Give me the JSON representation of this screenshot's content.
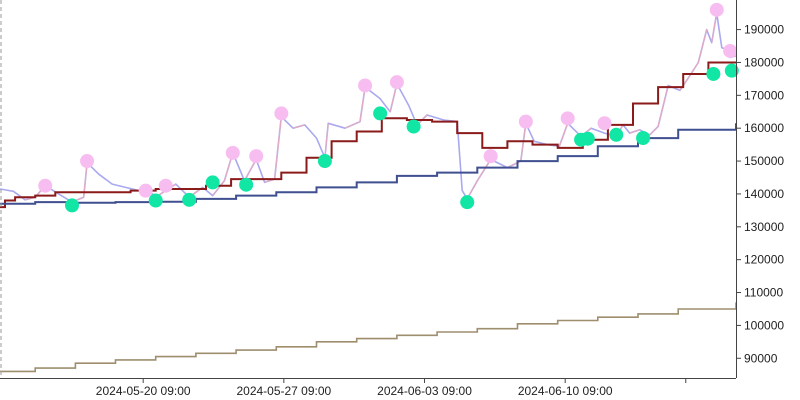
{
  "chart_data": {
    "type": "line",
    "title": "",
    "xlabel": "",
    "ylabel": "",
    "x_range": [
      "2024-05-13T06:00",
      "2024-06-18T21:00"
    ],
    "ylim": [
      84000,
      199000
    ],
    "y_ticks": [
      90000,
      100000,
      110000,
      120000,
      130000,
      140000,
      150000,
      160000,
      170000,
      180000,
      190000
    ],
    "x_ticks": [
      {
        "x": "2024-05-20T09:00",
        "label": "2024-05-20 09:00"
      },
      {
        "x": "2024-05-27T09:00",
        "label": "2024-05-27 09:00"
      },
      {
        "x": "2024-06-03T09:00",
        "label": "2024-06-03 09:00"
      },
      {
        "x": "2024-06-10T09:00",
        "label": "2024-06-10 09:00"
      },
      {
        "x": "2024-06-16T09:00",
        "label": ""
      }
    ],
    "axis_position": "right",
    "grid": false,
    "colors": {
      "price": "#a9a9f0",
      "price_up": "#f3a9b8",
      "short_ma": "#8b1a1a",
      "long_ma": "#3f4f8f",
      "trend": "#9e8e6e",
      "peak_marker": "#f7bdf0",
      "trough_marker": "#11e6a4",
      "axis": "#444444",
      "start_line": "#999999"
    },
    "series": [
      {
        "style": "price",
        "points": [
          [
            "2024-05-13T06:00",
            141500
          ],
          [
            "2024-05-13T22:00",
            140800
          ],
          [
            "2024-05-14T12:00",
            138200
          ],
          [
            "2024-05-15T00:00",
            139000
          ],
          [
            "2024-05-15T12:00",
            142500
          ],
          [
            "2024-05-16T04:00",
            140000
          ],
          [
            "2024-05-16T20:00",
            137500
          ],
          [
            "2024-05-17T10:00",
            139000
          ],
          [
            "2024-05-17T14:00",
            149500
          ],
          [
            "2024-05-18T04:00",
            146000
          ],
          [
            "2024-05-18T20:00",
            143000
          ],
          [
            "2024-05-19T12:00",
            142000
          ],
          [
            "2024-05-20T04:00",
            141000
          ],
          [
            "2024-05-20T12:00",
            142000
          ],
          [
            "2024-05-21T00:00",
            139000
          ],
          [
            "2024-05-21T12:00",
            141000
          ],
          [
            "2024-05-22T00:00",
            143000
          ],
          [
            "2024-05-22T16:00",
            139000
          ],
          [
            "2024-05-23T08:00",
            142000
          ],
          [
            "2024-05-23T20:00",
            139500
          ],
          [
            "2024-05-24T10:00",
            144000
          ],
          [
            "2024-05-24T20:00",
            152500
          ],
          [
            "2024-05-25T10:00",
            144000
          ],
          [
            "2024-05-26T00:00",
            150500
          ],
          [
            "2024-05-26T10:00",
            143500
          ],
          [
            "2024-05-26T22:00",
            144500
          ],
          [
            "2024-05-27T06:00",
            163500
          ],
          [
            "2024-05-27T20:00",
            160000
          ],
          [
            "2024-05-28T10:00",
            161000
          ],
          [
            "2024-05-29T00:00",
            157000
          ],
          [
            "2024-05-29T10:00",
            151000
          ],
          [
            "2024-05-29T14:00",
            161500
          ],
          [
            "2024-05-30T10:00",
            160000
          ],
          [
            "2024-05-31T04:00",
            162000
          ],
          [
            "2024-05-31T10:00",
            172500
          ],
          [
            "2024-06-01T04:00",
            169000
          ],
          [
            "2024-06-01T16:00",
            165000
          ],
          [
            "2024-06-02T00:00",
            173500
          ],
          [
            "2024-06-02T14:00",
            167000
          ],
          [
            "2024-06-03T00:00",
            161000
          ],
          [
            "2024-06-03T12:00",
            164000
          ],
          [
            "2024-06-04T08:00",
            162500
          ],
          [
            "2024-06-05T00:00",
            162000
          ],
          [
            "2024-06-05T06:00",
            141000
          ],
          [
            "2024-06-05T12:00",
            138500
          ],
          [
            "2024-06-06T00:00",
            144000
          ],
          [
            "2024-06-06T16:00",
            150500
          ],
          [
            "2024-06-07T12:00",
            148000
          ],
          [
            "2024-06-08T04:00",
            150000
          ],
          [
            "2024-06-08T10:00",
            161500
          ],
          [
            "2024-06-08T20:00",
            156000
          ],
          [
            "2024-06-09T12:00",
            155000
          ],
          [
            "2024-06-10T02:00",
            154500
          ],
          [
            "2024-06-10T12:00",
            161500
          ],
          [
            "2024-06-11T04:00",
            157500
          ],
          [
            "2024-06-11T16:00",
            160000
          ],
          [
            "2024-06-12T08:00",
            158500
          ],
          [
            "2024-06-12T22:00",
            157500
          ],
          [
            "2024-06-13T06:00",
            161000
          ],
          [
            "2024-06-13T14:00",
            158500
          ],
          [
            "2024-06-14T02:00",
            159500
          ],
          [
            "2024-06-14T14:00",
            158000
          ],
          [
            "2024-06-15T00:00",
            160500
          ],
          [
            "2024-06-15T12:00",
            173000
          ],
          [
            "2024-06-16T02:00",
            171500
          ],
          [
            "2024-06-16T14:00",
            176000
          ],
          [
            "2024-06-17T00:00",
            180000
          ],
          [
            "2024-06-17T10:00",
            190000
          ],
          [
            "2024-06-17T16:00",
            186000
          ],
          [
            "2024-06-17T22:00",
            195000
          ],
          [
            "2024-06-18T04:00",
            184500
          ],
          [
            "2024-06-18T10:00",
            184000
          ],
          [
            "2024-06-18T14:00",
            181500
          ],
          [
            "2024-06-18T21:00",
            182000
          ]
        ]
      },
      {
        "style": "short_ma",
        "points": [
          [
            "2024-05-13T06:00",
            136000
          ],
          [
            "2024-05-13T12:00",
            138000
          ],
          [
            "2024-05-14T00:00",
            139000
          ],
          [
            "2024-05-15T00:00",
            139500
          ],
          [
            "2024-05-16T00:00",
            140500
          ],
          [
            "2024-05-17T06:00",
            140500
          ],
          [
            "2024-05-18T12:00",
            140500
          ],
          [
            "2024-05-19T18:00",
            141000
          ],
          [
            "2024-05-21T00:00",
            141500
          ],
          [
            "2024-05-22T06:00",
            141500
          ],
          [
            "2024-05-23T12:00",
            142500
          ],
          [
            "2024-05-24T18:00",
            144500
          ],
          [
            "2024-05-26T00:00",
            144500
          ],
          [
            "2024-05-27T06:00",
            146500
          ],
          [
            "2024-05-28T12:00",
            151000
          ],
          [
            "2024-05-29T18:00",
            156000
          ],
          [
            "2024-05-31T00:00",
            159000
          ],
          [
            "2024-06-01T06:00",
            163000
          ],
          [
            "2024-06-02T12:00",
            162500
          ],
          [
            "2024-06-03T18:00",
            162000
          ],
          [
            "2024-06-05T00:00",
            158500
          ],
          [
            "2024-06-06T06:00",
            154000
          ],
          [
            "2024-06-07T12:00",
            156000
          ],
          [
            "2024-06-08T18:00",
            155000
          ],
          [
            "2024-06-10T00:00",
            154000
          ],
          [
            "2024-06-11T06:00",
            156500
          ],
          [
            "2024-06-12T12:00",
            161000
          ],
          [
            "2024-06-13T18:00",
            167500
          ],
          [
            "2024-06-15T00:00",
            172500
          ],
          [
            "2024-06-16T06:00",
            176500
          ],
          [
            "2024-06-17T12:00",
            180000
          ],
          [
            "2024-06-18T21:00",
            180000
          ]
        ]
      },
      {
        "style": "long_ma",
        "points": [
          [
            "2024-05-13T06:00",
            137000
          ],
          [
            "2024-05-15T00:00",
            137500
          ],
          [
            "2024-05-17T00:00",
            137300
          ],
          [
            "2024-05-19T00:00",
            137500
          ],
          [
            "2024-05-21T00:00",
            137600
          ],
          [
            "2024-05-23T00:00",
            138500
          ],
          [
            "2024-05-25T00:00",
            139500
          ],
          [
            "2024-05-27T00:00",
            140500
          ],
          [
            "2024-05-29T00:00",
            142000
          ],
          [
            "2024-05-31T00:00",
            143500
          ],
          [
            "2024-06-02T00:00",
            145500
          ],
          [
            "2024-06-04T00:00",
            146500
          ],
          [
            "2024-06-06T00:00",
            148000
          ],
          [
            "2024-06-08T00:00",
            150000
          ],
          [
            "2024-06-10T00:00",
            151500
          ],
          [
            "2024-06-12T00:00",
            154500
          ],
          [
            "2024-06-14T00:00",
            157000
          ],
          [
            "2024-06-16T00:00",
            159500
          ],
          [
            "2024-06-18T21:00",
            161500
          ]
        ]
      },
      {
        "style": "trend",
        "points": [
          [
            "2024-05-13T06:00",
            86000
          ],
          [
            "2024-05-15T00:00",
            87000
          ],
          [
            "2024-05-17T00:00",
            88500
          ],
          [
            "2024-05-19T00:00",
            89500
          ],
          [
            "2024-05-21T00:00",
            90500
          ],
          [
            "2024-05-23T00:00",
            91500
          ],
          [
            "2024-05-25T00:00",
            92500
          ],
          [
            "2024-05-27T00:00",
            93500
          ],
          [
            "2024-05-29T00:00",
            95000
          ],
          [
            "2024-05-31T00:00",
            96000
          ],
          [
            "2024-06-02T00:00",
            97000
          ],
          [
            "2024-06-04T00:00",
            98000
          ],
          [
            "2024-06-06T00:00",
            99000
          ],
          [
            "2024-06-08T00:00",
            100500
          ],
          [
            "2024-06-10T00:00",
            101500
          ],
          [
            "2024-06-12T00:00",
            102500
          ],
          [
            "2024-06-14T00:00",
            103500
          ],
          [
            "2024-06-16T00:00",
            105000
          ],
          [
            "2024-06-18T21:00",
            107000
          ]
        ]
      }
    ],
    "peaks": [
      [
        "2024-05-15T12:00",
        142500
      ],
      [
        "2024-05-17T14:00",
        150000
      ],
      [
        "2024-05-20T12:00",
        141000
      ],
      [
        "2024-05-21T12:00",
        142500
      ],
      [
        "2024-05-24T20:00",
        152500
      ],
      [
        "2024-05-26T00:00",
        151500
      ],
      [
        "2024-05-27T06:00",
        164500
      ],
      [
        "2024-05-31T10:00",
        173000
      ],
      [
        "2024-06-02T00:00",
        174000
      ],
      [
        "2024-06-06T16:00",
        151500
      ],
      [
        "2024-06-08T10:00",
        162000
      ],
      [
        "2024-06-10T12:00",
        163000
      ],
      [
        "2024-06-12T08:00",
        161500
      ],
      [
        "2024-06-17T22:00",
        196000
      ],
      [
        "2024-06-18T14:00",
        183500
      ]
    ],
    "troughs": [
      [
        "2024-05-16T20:00",
        136500
      ],
      [
        "2024-05-21T00:00",
        138000
      ],
      [
        "2024-05-22T16:00",
        138200
      ],
      [
        "2024-05-23T20:00",
        143500
      ],
      [
        "2024-05-25T12:00",
        142800
      ],
      [
        "2024-05-29T10:00",
        150000
      ],
      [
        "2024-06-01T04:00",
        164500
      ],
      [
        "2024-06-02T20:00",
        160500
      ],
      [
        "2024-06-05T12:00",
        137500
      ],
      [
        "2024-06-11T04:00",
        156500
      ],
      [
        "2024-06-11T12:00",
        156800
      ],
      [
        "2024-06-12T22:00",
        158000
      ],
      [
        "2024-06-14T06:00",
        157000
      ],
      [
        "2024-06-17T18:00",
        176500
      ],
      [
        "2024-06-18T16:00",
        177500
      ]
    ]
  }
}
